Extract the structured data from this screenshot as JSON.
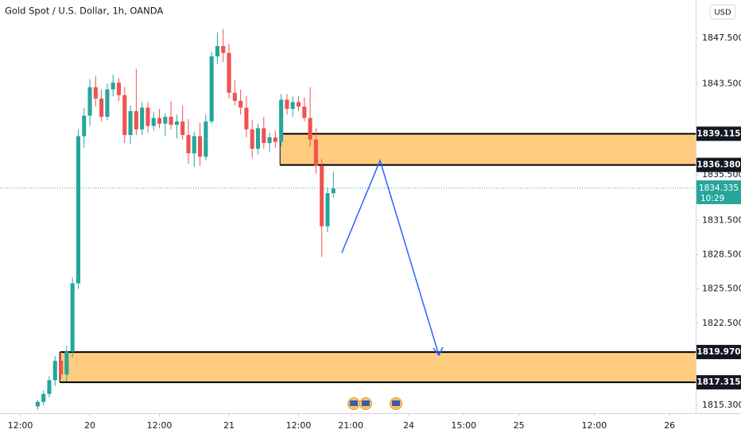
{
  "chart_data": {
    "type": "candlestick",
    "title": "Gold Spot / U.S. Dollar, 1h, OANDA",
    "currency": "USD",
    "up_color": "#26a69a",
    "down_color": "#ef5350",
    "grid": false,
    "xlim": [
      8.5,
      128.5
    ],
    "ylim": [
      1814.61,
      1850.845
    ],
    "yticks": [
      {
        "value": 1847.5,
        "label": "1847.500"
      },
      {
        "value": 1843.5,
        "label": "1843.500"
      },
      {
        "value": 1835.5,
        "label": "1835.500"
      },
      {
        "value": 1831.5,
        "label": "1831.500"
      },
      {
        "value": 1828.5,
        "label": "1828.500"
      },
      {
        "value": 1825.5,
        "label": "1825.500"
      },
      {
        "value": 1822.5,
        "label": "1822.500"
      },
      {
        "value": 1815.3,
        "label": "1815.300"
      }
    ],
    "xticks": [
      {
        "value": 12,
        "label": "12:00"
      },
      {
        "value": 24,
        "label": "20"
      },
      {
        "value": 36,
        "label": "12:00"
      },
      {
        "value": 48,
        "label": "21"
      },
      {
        "value": 60,
        "label": "12:00"
      },
      {
        "value": 69,
        "label": "21:00"
      },
      {
        "value": 79,
        "label": "24"
      },
      {
        "value": 88.5,
        "label": "15:00"
      },
      {
        "value": 98,
        "label": "25"
      },
      {
        "value": 111,
        "label": "12:00"
      },
      {
        "value": 124,
        "label": "26"
      }
    ],
    "x": [
      15,
      16,
      17,
      18,
      19,
      20,
      21,
      22,
      23,
      24,
      25,
      26,
      27,
      28,
      29,
      30,
      31,
      32,
      33,
      34,
      35,
      36,
      37,
      38,
      39,
      40,
      41,
      42,
      43,
      44,
      45,
      46,
      47,
      48,
      49,
      50,
      51,
      52,
      53,
      54,
      55,
      56,
      57,
      58,
      59,
      60,
      61,
      62,
      63,
      64,
      65,
      66
    ],
    "open": [
      1815.2,
      1815.6,
      1816.3,
      1817.5,
      1819.2,
      1818.0,
      1820.0,
      1826.0,
      1838.9,
      1840.7,
      1843.2,
      1842.2,
      1840.6,
      1843.0,
      1843.6,
      1842.5,
      1839.0,
      1841.1,
      1839.5,
      1841.4,
      1839.8,
      1840.5,
      1840.0,
      1840.6,
      1839.9,
      1840.2,
      1839.0,
      1837.4,
      1838.9,
      1837.1,
      1840.2,
      1845.9,
      1846.8,
      1846.2,
      1842.7,
      1842.0,
      1841.4,
      1839.5,
      1837.8,
      1839.6,
      1838.3,
      1838.8,
      1838.4,
      1842.1,
      1841.3,
      1841.9,
      1841.5,
      1840.5,
      1838.6,
      1836.3,
      1831.0,
      1833.9
    ],
    "high": [
      1815.8,
      1816.6,
      1817.9,
      1819.6,
      1820.0,
      1820.5,
      1826.5,
      1839.5,
      1841.4,
      1843.9,
      1844.2,
      1843.0,
      1843.5,
      1844.3,
      1844.0,
      1843.2,
      1841.6,
      1844.8,
      1841.9,
      1841.9,
      1841.0,
      1841.3,
      1840.9,
      1842.0,
      1840.8,
      1841.6,
      1840.4,
      1839.3,
      1840.1,
      1840.8,
      1846.3,
      1848.0,
      1848.3,
      1847.0,
      1843.8,
      1843.0,
      1842.4,
      1840.3,
      1840.0,
      1840.6,
      1839.2,
      1839.4,
      1842.6,
      1842.6,
      1842.4,
      1842.4,
      1842.3,
      1843.2,
      1839.6,
      1836.9,
      1834.4,
      1835.8
    ],
    "low": [
      1814.9,
      1815.3,
      1816.0,
      1817.0,
      1817.6,
      1817.4,
      1819.5,
      1825.5,
      1837.9,
      1839.8,
      1841.5,
      1840.2,
      1840.3,
      1842.4,
      1842.0,
      1838.3,
      1838.2,
      1839.0,
      1839.0,
      1839.2,
      1839.4,
      1839.6,
      1838.9,
      1839.5,
      1838.7,
      1838.6,
      1836.5,
      1836.2,
      1836.3,
      1836.8,
      1840.0,
      1845.2,
      1845.4,
      1842.2,
      1841.6,
      1840.8,
      1838.8,
      1837.0,
      1837.3,
      1837.8,
      1837.5,
      1837.9,
      1838.0,
      1840.8,
      1840.6,
      1841.1,
      1840.2,
      1838.0,
      1835.6,
      1828.3,
      1830.5,
      1833.5
    ],
    "close": [
      1815.6,
      1816.3,
      1817.5,
      1819.2,
      1818.0,
      1820.0,
      1826.0,
      1838.9,
      1840.7,
      1843.2,
      1842.2,
      1840.6,
      1843.0,
      1843.6,
      1842.5,
      1839.0,
      1841.1,
      1839.5,
      1841.4,
      1839.8,
      1840.5,
      1840.0,
      1840.6,
      1839.9,
      1840.2,
      1839.0,
      1837.4,
      1838.9,
      1837.1,
      1840.2,
      1845.9,
      1846.8,
      1846.2,
      1842.7,
      1842.0,
      1841.4,
      1839.5,
      1837.8,
      1839.6,
      1838.3,
      1838.8,
      1838.4,
      1842.1,
      1841.3,
      1841.9,
      1841.5,
      1840.5,
      1838.6,
      1836.3,
      1831.0,
      1833.9,
      1834.3
    ],
    "zones": [
      {
        "top": 1839.115,
        "bottom": {
          "value": 1836.38,
          "label": "1836.380"
        },
        "start": 56.8,
        "color": "#ffcc80"
      },
      {
        "top": {
          "value": 1819.97,
          "label": "1819.970"
        },
        "bottom": 1817.315,
        "start": 18.8,
        "color": "#ffcc80"
      }
    ],
    "last_price": 1834.335,
    "countdown": "10:29"
  }
}
